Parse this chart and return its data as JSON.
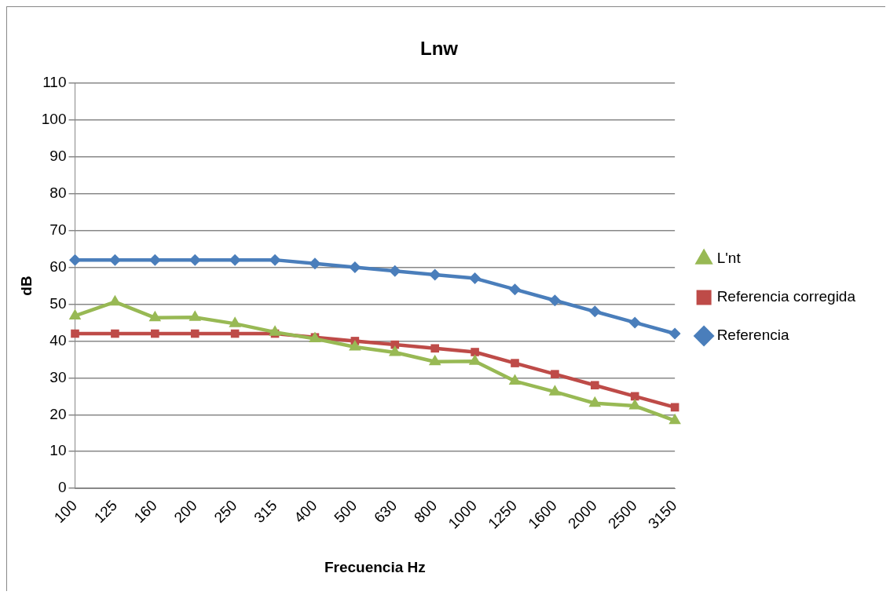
{
  "chart_data": {
    "type": "line",
    "title": "Lnw",
    "xlabel": "Frecuencia Hz",
    "ylabel": "dB",
    "categories": [
      "100",
      "125",
      "160",
      "200",
      "250",
      "315",
      "400",
      "500",
      "630",
      "800",
      "1000",
      "1250",
      "1600",
      "2000",
      "2500",
      "3150"
    ],
    "series": [
      {
        "name": "Referencia",
        "color": "#4a7ebb",
        "marker": "diamond",
        "values": [
          62,
          62,
          62,
          62,
          62,
          62,
          61,
          60,
          59,
          58,
          57,
          54,
          51,
          48,
          45,
          42
        ]
      },
      {
        "name": "Referencia corregida",
        "color": "#be4b48",
        "marker": "square",
        "values": [
          42,
          42,
          42,
          42,
          42,
          42,
          41,
          40,
          39,
          38,
          37,
          34,
          31,
          28,
          25,
          22
        ]
      },
      {
        "name": "L'nt",
        "color": "#98b954",
        "marker": "triangle",
        "values": [
          46.8,
          50.6,
          46.3,
          46.4,
          44.7,
          42.4,
          40.6,
          38.4,
          36.9,
          34.4,
          34.5,
          29.1,
          26.2,
          23.1,
          22.4,
          18.4
        ]
      }
    ],
    "ylim": [
      0,
      110
    ],
    "yticks": [
      0,
      10,
      20,
      30,
      40,
      50,
      60,
      70,
      80,
      90,
      100,
      110
    ],
    "grid": "y",
    "legend": "right"
  }
}
